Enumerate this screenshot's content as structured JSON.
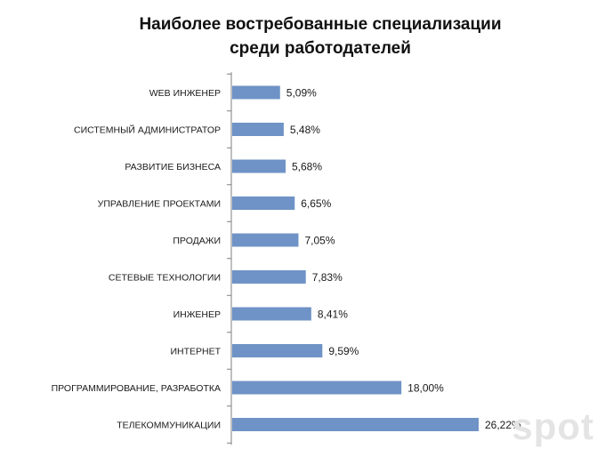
{
  "chart_data": {
    "type": "bar",
    "orientation": "horizontal",
    "title": "Наиболее востребованные специализации среди работодателей",
    "title_lines": [
      "Наиболее востребованные специализации",
      "среди работодателей"
    ],
    "categories": [
      "WEB ИНЖЕНЕР",
      "СИСТЕМНЫЙ АДМИНИСТРАТОР",
      "РАЗВИТИЕ БИЗНЕСА",
      "УПРАВЛЕНИЕ ПРОЕКТАМИ",
      "ПРОДАЖИ",
      "СЕТЕВЫЕ ТЕХНОЛОГИИ",
      "ИНЖЕНЕР",
      "ИНТЕРНЕТ",
      "ПРОГРАММИРОВАНИЕ, РАЗРАБОТКА",
      "ТЕЛЕКОММУНИКАЦИИ"
    ],
    "values": [
      5.09,
      5.48,
      5.68,
      6.65,
      7.05,
      7.83,
      8.41,
      9.59,
      18.0,
      26.22
    ],
    "value_labels": [
      "5,09%",
      "5,48%",
      "5,68%",
      "6,65%",
      "7,05%",
      "7,83%",
      "8,41%",
      "9,59%",
      "18,00%",
      "26,22%"
    ],
    "unit": "%",
    "xlim": [
      0,
      30
    ],
    "grid": false,
    "legend": "none",
    "bar_color": "#6f93c6"
  },
  "watermark": "spot"
}
